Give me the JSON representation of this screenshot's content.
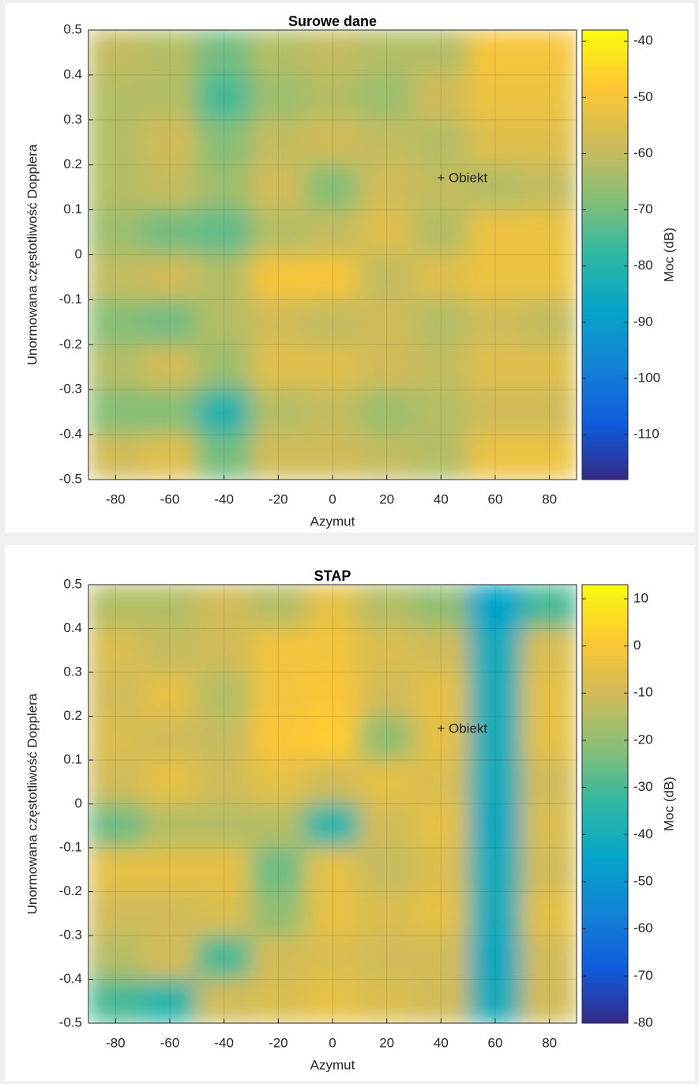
{
  "chart_data": [
    {
      "type": "heatmap",
      "title": "Surowe dane",
      "xlabel": "Azymut",
      "ylabel": "Unormowana częstotliwość Dopplera",
      "x": [
        -80,
        -60,
        -40,
        -20,
        0,
        20,
        40,
        60,
        80
      ],
      "y": [
        0.45,
        0.35,
        0.25,
        0.15,
        0.05,
        -0.05,
        -0.15,
        -0.25,
        -0.35,
        -0.45
      ],
      "values": [
        [
          -60,
          -62,
          -70,
          -62,
          -60,
          -62,
          -62,
          -50,
          -50
        ],
        [
          -62,
          -62,
          -75,
          -65,
          -62,
          -65,
          -58,
          -52,
          -52
        ],
        [
          -62,
          -58,
          -68,
          -60,
          -58,
          -60,
          -62,
          -55,
          -55
        ],
        [
          -62,
          -60,
          -65,
          -58,
          -68,
          -58,
          -60,
          -62,
          -60
        ],
        [
          -65,
          -70,
          -72,
          -62,
          -60,
          -55,
          -62,
          -52,
          -52
        ],
        [
          -60,
          -58,
          -62,
          -50,
          -50,
          -60,
          -55,
          -52,
          -52
        ],
        [
          -68,
          -70,
          -62,
          -58,
          -60,
          -58,
          -62,
          -58,
          -60
        ],
        [
          -62,
          -58,
          -65,
          -55,
          -55,
          -58,
          -60,
          -55,
          -55
        ],
        [
          -68,
          -68,
          -80,
          -62,
          -60,
          -65,
          -62,
          -58,
          -58
        ],
        [
          -58,
          -55,
          -70,
          -58,
          -58,
          -60,
          -62,
          -52,
          -52
        ]
      ],
      "xlim": [
        -90,
        90
      ],
      "ylim": [
        -0.5,
        0.5
      ],
      "xticks": [
        -80,
        -60,
        -40,
        -20,
        0,
        20,
        40,
        60,
        80
      ],
      "yticks": [
        -0.5,
        -0.4,
        -0.3,
        -0.2,
        -0.1,
        0,
        0.1,
        0.2,
        0.3,
        0.4,
        0.5
      ],
      "grid": true,
      "colormap": [
        "#352a87",
        "#0f5cdd",
        "#1481d6",
        "#06a4ca",
        "#2eb7a4",
        "#87bf77",
        "#d1bb59",
        "#fec832",
        "#f9fb0e"
      ],
      "colorbar": {
        "label": "Moc (dB)",
        "lim": [
          -118,
          -38
        ],
        "ticks": [
          -110,
          -100,
          -90,
          -80,
          -70,
          -60,
          -50,
          -40
        ]
      },
      "annotations": [
        {
          "text": "+ Obiekt",
          "x": 40,
          "y": 0.17
        }
      ]
    },
    {
      "type": "heatmap",
      "title": "STAP",
      "xlabel": "Azymut",
      "ylabel": "Unormowana częstotliwość Dopplera",
      "x": [
        -80,
        -60,
        -40,
        -20,
        0,
        20,
        40,
        60,
        80
      ],
      "y": [
        0.45,
        0.35,
        0.25,
        0.15,
        0.05,
        -0.05,
        -0.15,
        -0.25,
        -0.35,
        -0.45
      ],
      "values": [
        [
          -15,
          -15,
          -10,
          -15,
          -5,
          -15,
          -20,
          -45,
          -30
        ],
        [
          -8,
          -12,
          -10,
          -2,
          -2,
          -8,
          -10,
          -40,
          -8
        ],
        [
          -10,
          -5,
          -15,
          -2,
          0,
          -10,
          -5,
          -40,
          -5
        ],
        [
          -8,
          -10,
          -12,
          0,
          2,
          -20,
          -5,
          -40,
          -5
        ],
        [
          -10,
          -5,
          -10,
          -5,
          -10,
          -5,
          -8,
          -40,
          -10
        ],
        [
          -25,
          -15,
          -15,
          -15,
          -35,
          -10,
          -5,
          -42,
          -8
        ],
        [
          -5,
          -5,
          -5,
          -25,
          -5,
          -12,
          -8,
          -40,
          -10
        ],
        [
          -10,
          -10,
          -8,
          -20,
          -5,
          -8,
          -5,
          -40,
          -5
        ],
        [
          -15,
          -10,
          -30,
          -10,
          -8,
          -10,
          -10,
          -42,
          -10
        ],
        [
          -30,
          -35,
          -10,
          -8,
          -5,
          -8,
          -10,
          -40,
          -10
        ]
      ],
      "xlim": [
        -90,
        90
      ],
      "ylim": [
        -0.5,
        0.5
      ],
      "xticks": [
        -80,
        -60,
        -40,
        -20,
        0,
        20,
        40,
        60,
        80
      ],
      "yticks": [
        -0.5,
        -0.4,
        -0.3,
        -0.2,
        -0.1,
        0,
        0.1,
        0.2,
        0.3,
        0.4,
        0.5
      ],
      "grid": true,
      "colormap": [
        "#352a87",
        "#0f5cdd",
        "#1481d6",
        "#06a4ca",
        "#2eb7a4",
        "#87bf77",
        "#d1bb59",
        "#fec832",
        "#f9fb0e"
      ],
      "colorbar": {
        "label": "Moc (dB)",
        "lim": [
          -80,
          13
        ],
        "ticks": [
          -80,
          -70,
          -60,
          -50,
          -40,
          -30,
          -20,
          -10,
          0,
          10
        ]
      },
      "annotations": [
        {
          "text": "+ Obiekt",
          "x": 40,
          "y": 0.17
        }
      ]
    }
  ]
}
